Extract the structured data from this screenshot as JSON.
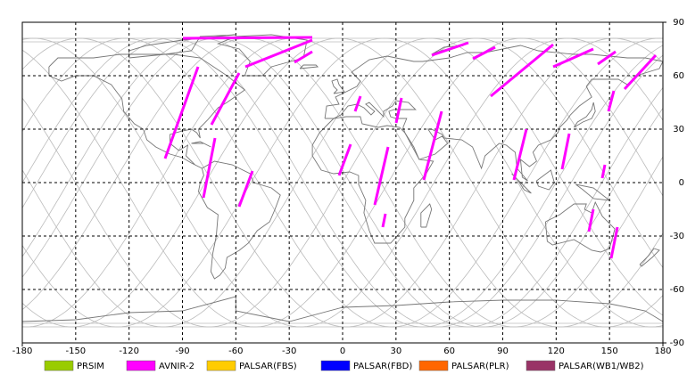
{
  "map": {
    "xticks": [
      -180,
      -150,
      -120,
      -90,
      -60,
      -30,
      0,
      30,
      60,
      90,
      120,
      150,
      180
    ],
    "yticks": [
      90,
      60,
      30,
      0,
      -30,
      -60,
      -90
    ],
    "legend": [
      {
        "label": "PRSIM",
        "color": "#99cc00"
      },
      {
        "label": "AVNIR-2",
        "color": "#ff00ff"
      },
      {
        "label": "PALSAR(FBS)",
        "color": "#ffcc00"
      },
      {
        "label": "PALSAR(FBD)",
        "color": "#0000ff"
      },
      {
        "label": "PALSAR(PLR)",
        "color": "#ff6600"
      },
      {
        "label": "PALSAR(WB1/WB2)",
        "color": "#993366"
      }
    ]
  }
}
